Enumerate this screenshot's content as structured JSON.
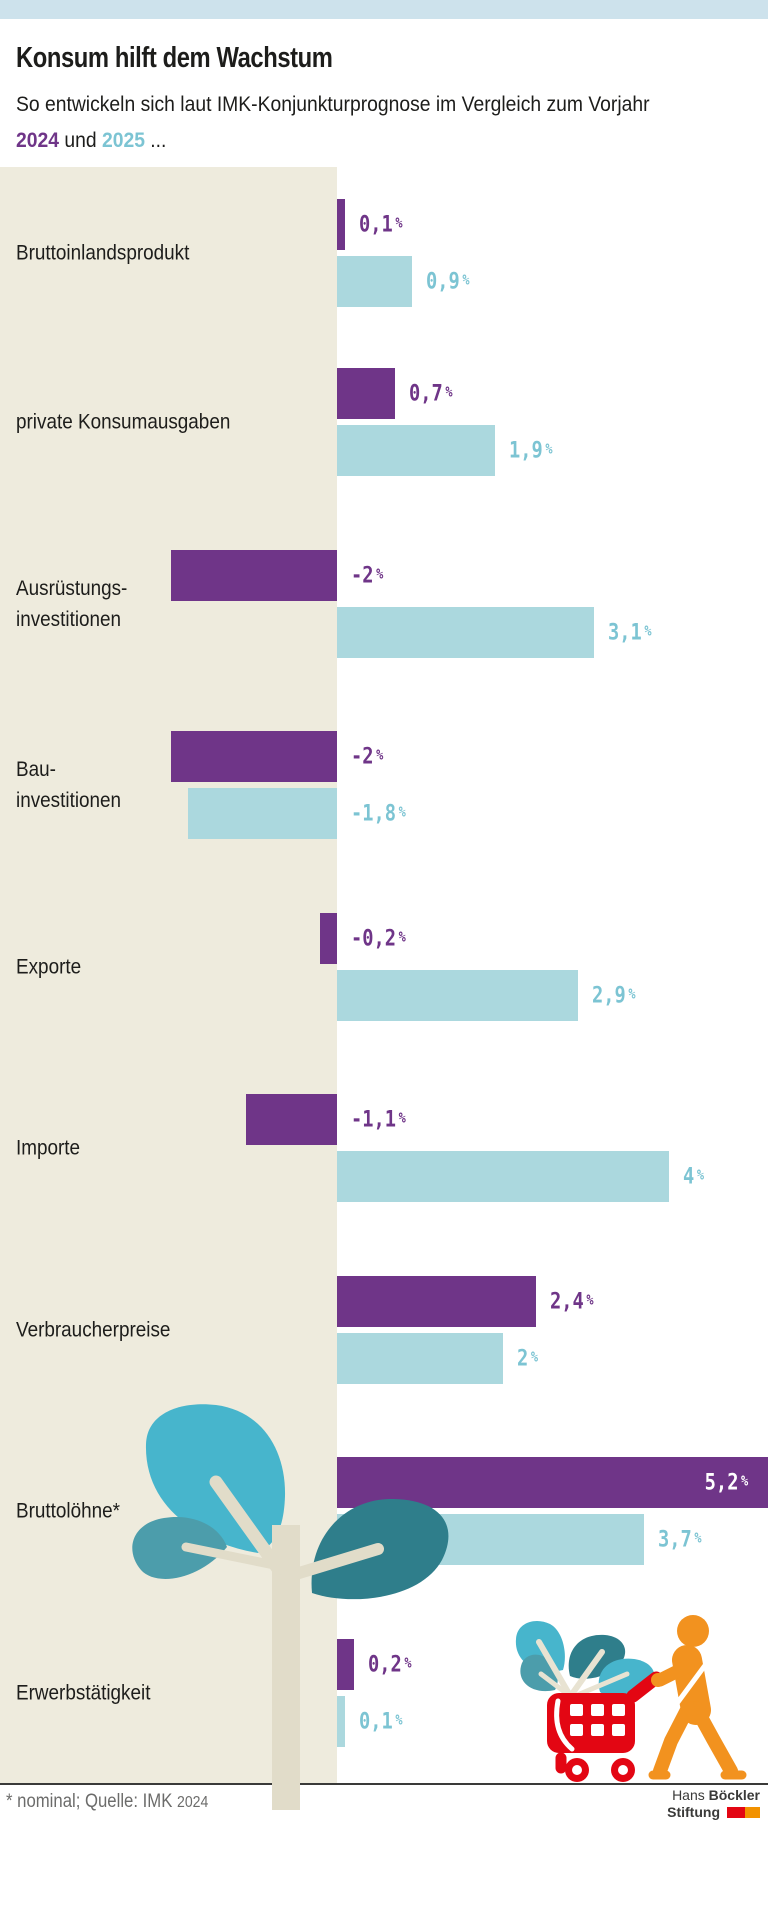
{
  "header": {
    "title": "Konsum hilft dem Wachstum",
    "subtitle_line1": "So entwickeln sich laut IMK-Konjunkturprognose im Vergleich zum Vorjahr",
    "year_2024": "2024",
    "subtitle_mid": " und ",
    "year_2025": "2025",
    "subtitle_end": " ..."
  },
  "colors": {
    "series_2024": "#6f3588",
    "series_2025_bar": "#abd8de",
    "series_2025_text": "#7cc4d3",
    "topbar": "#cde2ec",
    "panel_beige": "#eeebdd",
    "cart_red": "#e30613",
    "person_orange": "#f2921f",
    "leaf_cyan": "#47b5cc",
    "leaf_teal_dark": "#2f7e8b",
    "leaf_teal_mid": "#4c9dab",
    "trunk_beige": "#e1dcc9"
  },
  "chart_data": {
    "type": "bar",
    "orientation": "horizontal",
    "unit": "%",
    "series": [
      {
        "name": "2024",
        "color": "#6f3588"
      },
      {
        "name": "2025",
        "color": "#abd8de"
      }
    ],
    "categories": [
      "Bruttoinlandsprodukt",
      "private Konsumausgaben",
      "Ausrüstungsinvestitionen",
      "Bauinvestitionen",
      "Exporte",
      "Importe",
      "Verbraucherpreise",
      "Bruttolöhne*",
      "Erwerbstätigkeit"
    ],
    "rows": [
      {
        "label_lines": [
          "Bruttoinlandsprodukt"
        ],
        "v2024": 0.1,
        "v2025": 0.9,
        "d2024": "0,1",
        "d2025": "0,9"
      },
      {
        "label_lines": [
          "private Konsumausgaben"
        ],
        "v2024": 0.7,
        "v2025": 1.9,
        "d2024": "0,7",
        "d2025": "1,9"
      },
      {
        "label_lines": [
          "Ausrüstungs-",
          "investitionen"
        ],
        "v2024": -2,
        "v2025": 3.1,
        "d2024": "-2",
        "d2025": "3,1"
      },
      {
        "label_lines": [
          "Bau-",
          "investitionen"
        ],
        "v2024": -2,
        "v2025": -1.8,
        "d2024": "-2",
        "d2025": "-1,8"
      },
      {
        "label_lines": [
          "Exporte"
        ],
        "v2024": -0.2,
        "v2025": 2.9,
        "d2024": "-0,2",
        "d2025": "2,9"
      },
      {
        "label_lines": [
          "Importe"
        ],
        "v2024": -1.1,
        "v2025": 4,
        "d2024": "-1,1",
        "d2025": "4"
      },
      {
        "label_lines": [
          "Verbraucherpreise"
        ],
        "v2024": 2.4,
        "v2025": 2,
        "d2024": "2,4",
        "d2025": "2"
      },
      {
        "label_lines": [
          "Bruttolöhne*"
        ],
        "v2024": 5.2,
        "v2025": 3.7,
        "d2024": "5,2",
        "d2025": "3,7",
        "label_2024_inside_bar": true
      },
      {
        "label_lines": [
          "Erwerbstätigkeit"
        ],
        "v2024": 0.2,
        "v2025": 0.1,
        "d2024": "0,2",
        "d2025": "0,1"
      }
    ]
  },
  "illustrations": {
    "plant": "sapling-with-leaves",
    "cart": "shopping-cart-filled-with-leaves",
    "person": "person-pushing-cart"
  },
  "footer": {
    "source_prefix": "* nominal; Quelle: IMK",
    "source_year": "2024",
    "logo_word1": "Hans",
    "logo_word2": "Böckler",
    "logo_word3": "Stiftung"
  }
}
